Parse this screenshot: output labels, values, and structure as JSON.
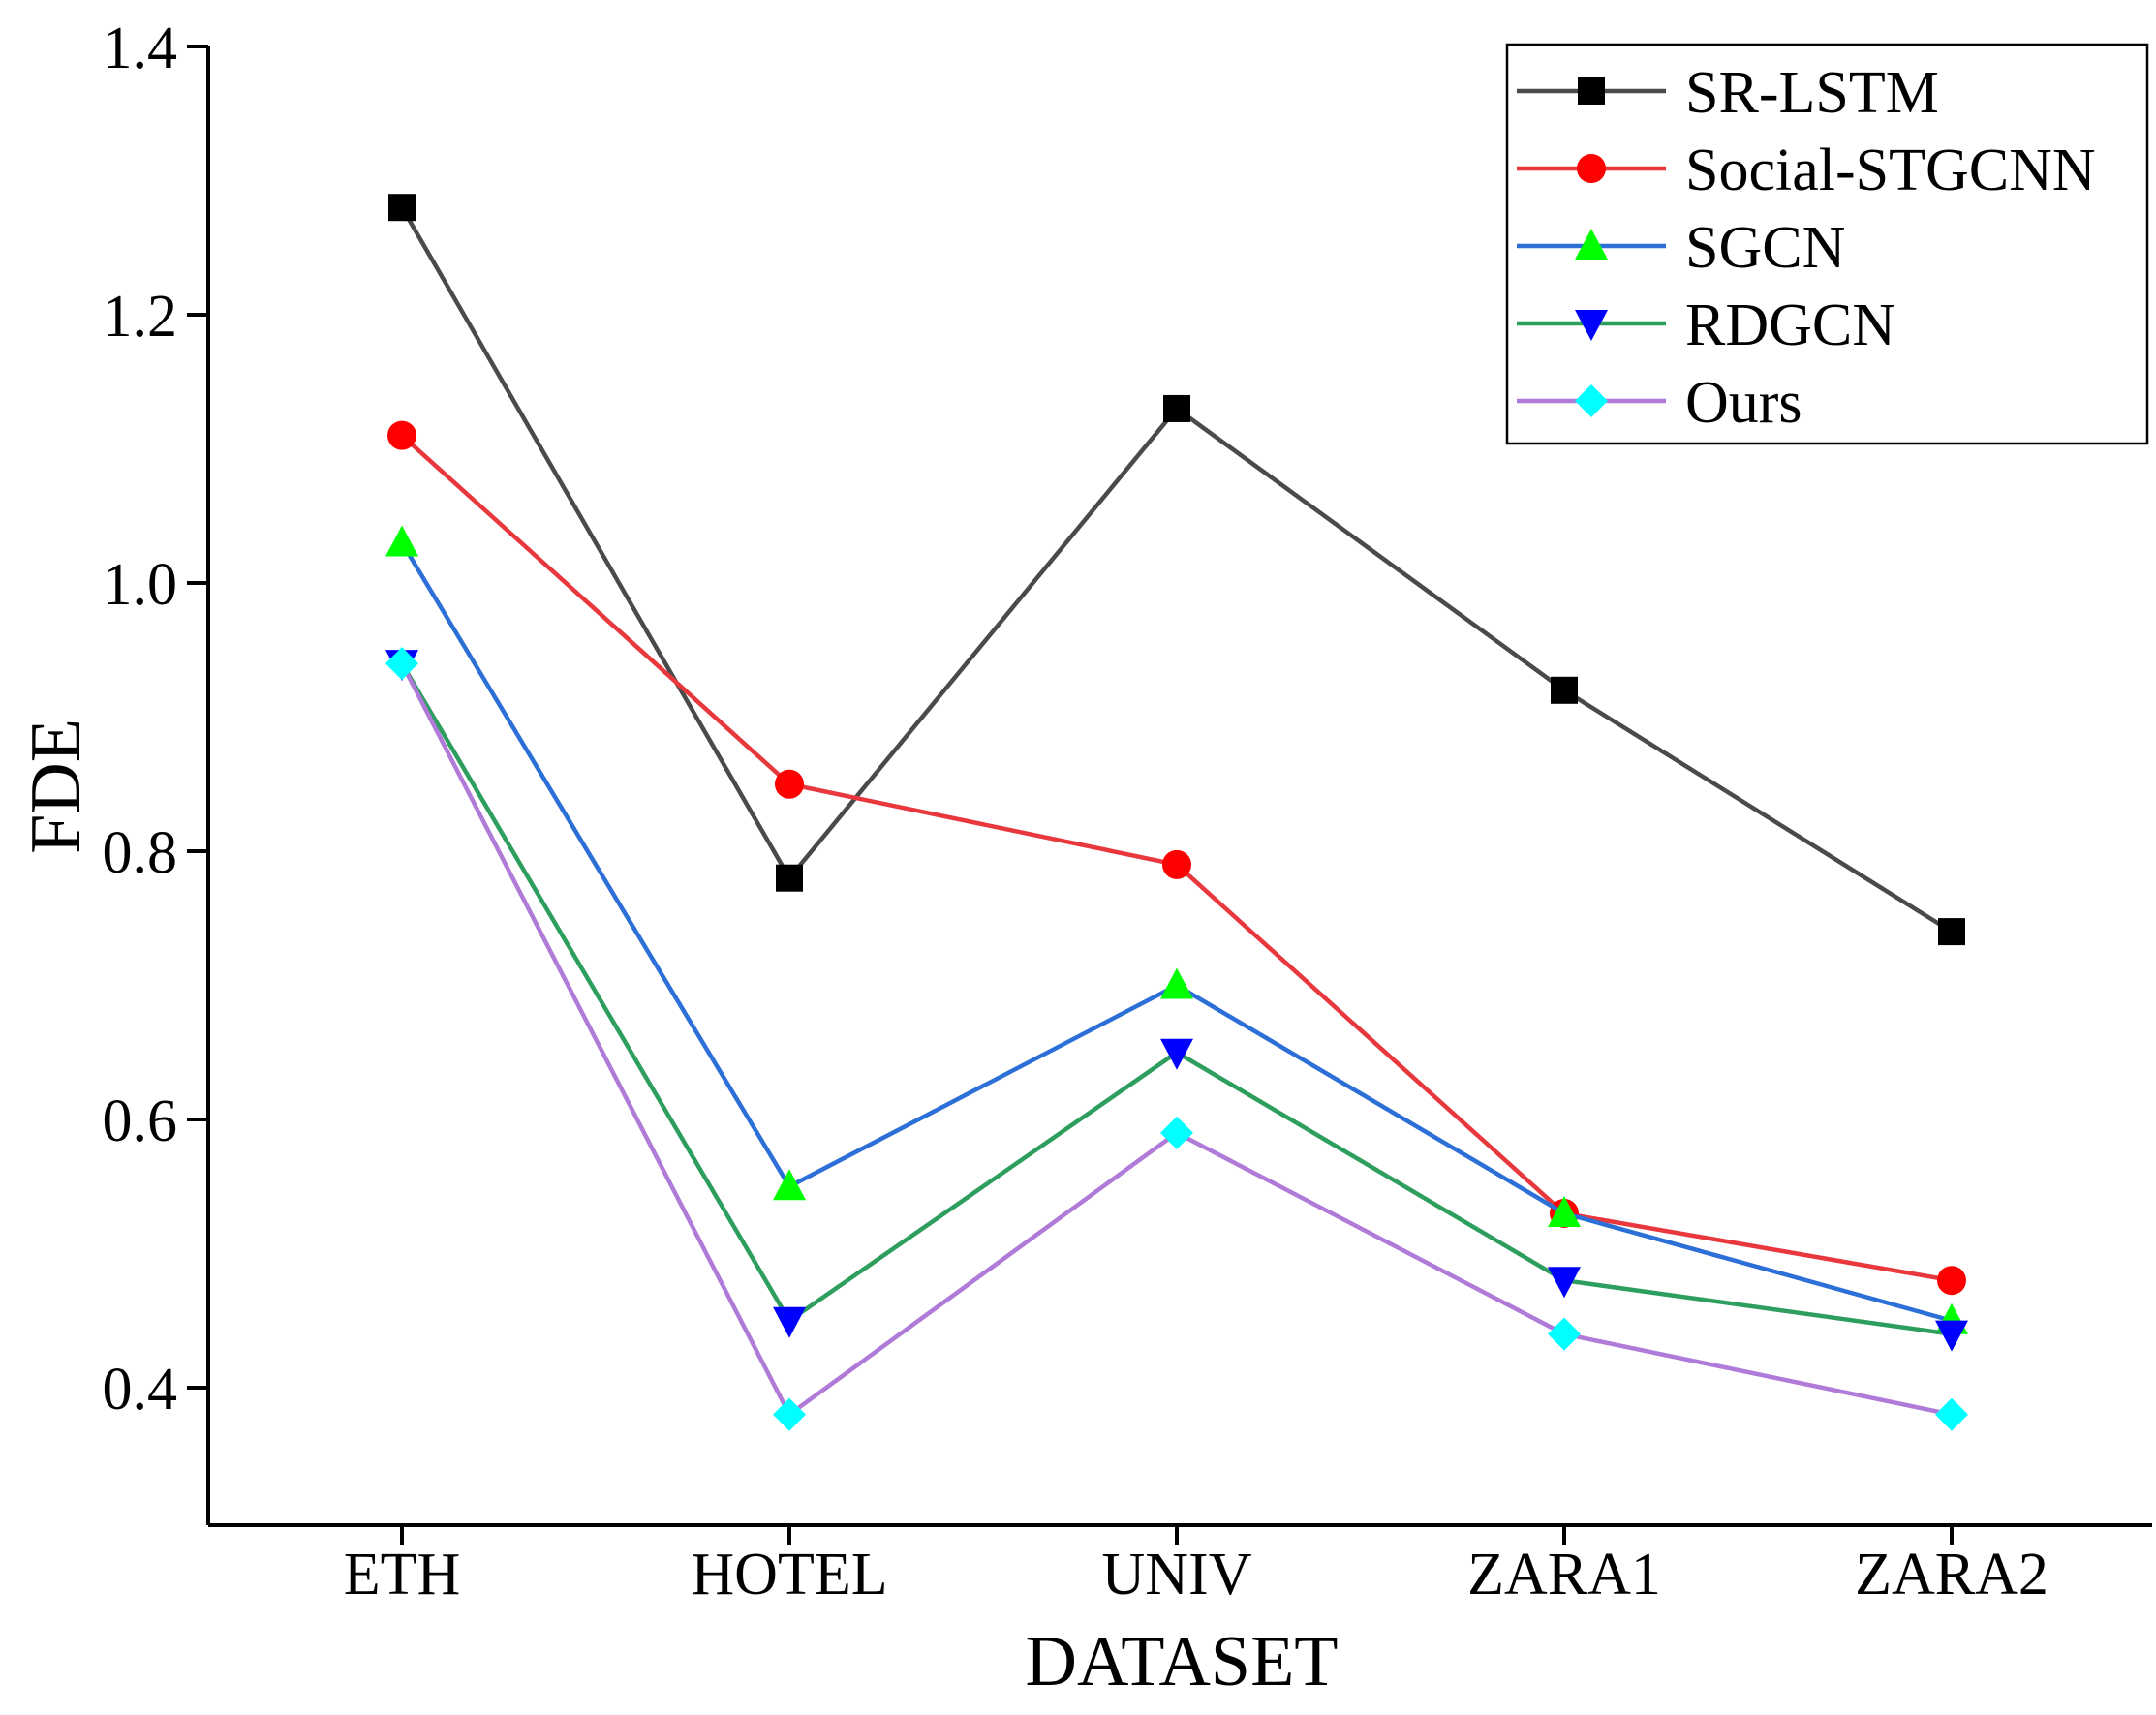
{
  "chart_data": {
    "type": "line",
    "title": "",
    "xlabel": "DATASET",
    "ylabel": "FDE",
    "categories": [
      "ETH",
      "HOTEL",
      "UNIV",
      "ZARA1",
      "ZARA2"
    ],
    "yticks": [
      "0.4",
      "0.6",
      "0.8",
      "1.0",
      "1.2",
      "1.4"
    ],
    "ylim": [
      0.3,
      1.4
    ],
    "grid": false,
    "legend_position": "top-right",
    "series": [
      {
        "name": "SR-LSTM",
        "values": [
          1.28,
          0.78,
          1.13,
          0.92,
          0.74
        ],
        "line_color": "#4a4a4a",
        "marker_color": "#000000",
        "marker": "square"
      },
      {
        "name": "Social-STGCNN",
        "values": [
          1.11,
          0.85,
          0.79,
          0.53,
          0.48
        ],
        "line_color": "#e8383d",
        "marker_color": "#ff0000",
        "marker": "circle"
      },
      {
        "name": "SGCN",
        "values": [
          1.03,
          0.55,
          0.7,
          0.53,
          0.45
        ],
        "line_color": "#2c6fd6",
        "marker_color": "#00ff00",
        "marker": "triangle-up"
      },
      {
        "name": "RDGCN",
        "values": [
          0.94,
          0.45,
          0.65,
          0.48,
          0.44
        ],
        "line_color": "#2e9e5e",
        "marker_color": "#0000ff",
        "marker": "triangle-down"
      },
      {
        "name": "Ours",
        "values": [
          0.94,
          0.38,
          0.59,
          0.44,
          0.38
        ],
        "line_color": "#b07ad8",
        "marker_color": "#00ffff",
        "marker": "diamond"
      }
    ]
  }
}
